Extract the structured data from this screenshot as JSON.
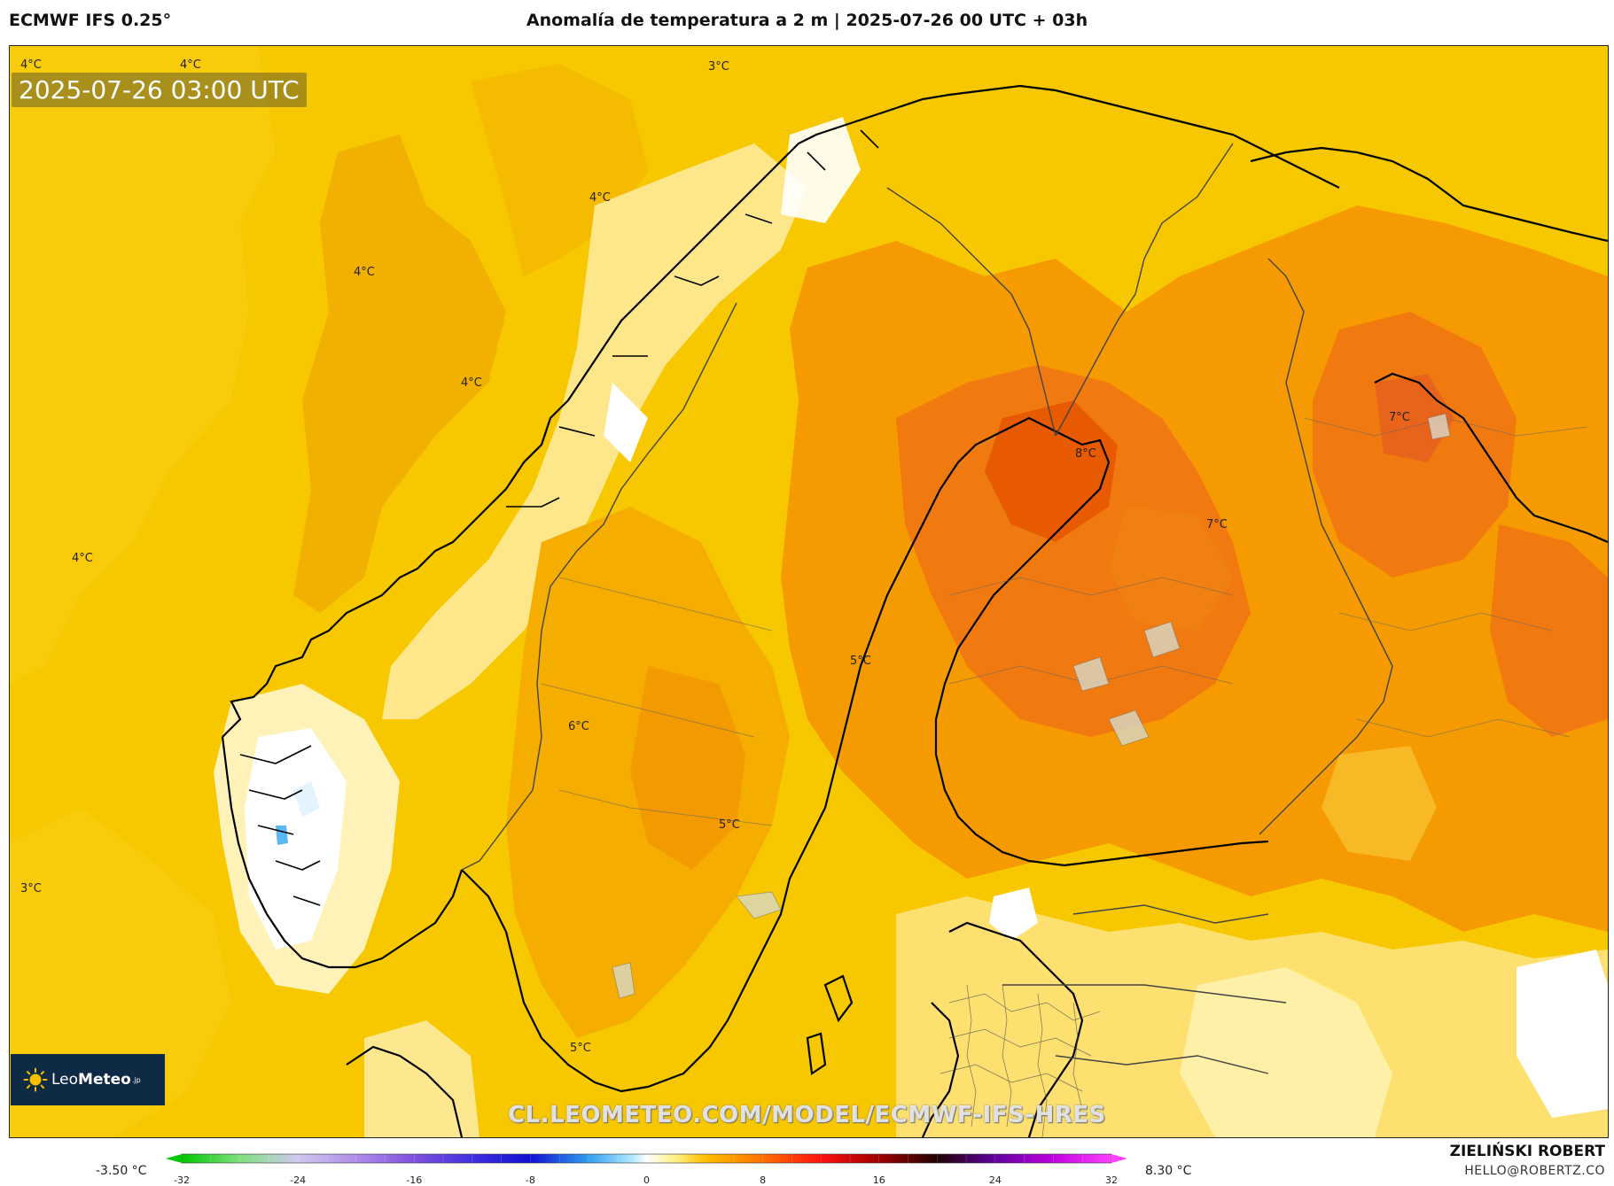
{
  "header": {
    "model": "ECMWF IFS 0.25°",
    "title": "Anomalía de temperatura a 2 m | 2025-07-26 00 UTC + 03h"
  },
  "map": {
    "timestamp": "2025-07-26 03:00 UTC",
    "contour_labels": [
      "4°C",
      "4°C",
      "3°C",
      "4°C",
      "4°C",
      "4°C",
      "4°C",
      "3°C",
      "8°C",
      "7°C",
      "7°C",
      "5°C",
      "6°C",
      "5°C",
      "5°C"
    ],
    "colors": {
      "background": "#f7c700",
      "land_warm": "#f5a800",
      "hot": "#f07a10",
      "hottest": "#e85000",
      "cool": "#fff4c0",
      "neutral": "#ffffff",
      "coastline": "#000000"
    }
  },
  "logo": {
    "brand_light": "Leo",
    "brand_bold": "Meteo",
    "suffix": ".jp"
  },
  "watermark_url": "CL.LEOMETEO.COM/MODEL/ECMWF-IFS-HRES",
  "colorbar": {
    "min_label": "-3.50 °C",
    "max_label": "8.30 °C",
    "ticks": [
      "-32",
      "-24",
      "-16",
      "-8",
      "0",
      "8",
      "16",
      "24",
      "32"
    ],
    "stops": [
      {
        "v": -32,
        "c": "#00c800"
      },
      {
        "v": -28,
        "c": "#7fe07f"
      },
      {
        "v": -24,
        "c": "#d0c8f0"
      },
      {
        "v": -20,
        "c": "#b08ce8"
      },
      {
        "v": -16,
        "c": "#8050e0"
      },
      {
        "v": -12,
        "c": "#4030e0"
      },
      {
        "v": -8,
        "c": "#1010d0"
      },
      {
        "v": -4,
        "c": "#30a0f0"
      },
      {
        "v": -1,
        "c": "#b0e8ff"
      },
      {
        "v": 0,
        "c": "#ffffff"
      },
      {
        "v": 2,
        "c": "#fff080"
      },
      {
        "v": 4,
        "c": "#ffc000"
      },
      {
        "v": 8,
        "c": "#ff7000"
      },
      {
        "v": 12,
        "c": "#ff1010"
      },
      {
        "v": 16,
        "c": "#a00000"
      },
      {
        "v": 20,
        "c": "#200000"
      },
      {
        "v": 24,
        "c": "#6000a0"
      },
      {
        "v": 28,
        "c": "#c000e0"
      },
      {
        "v": 32,
        "c": "#ff40ff"
      }
    ]
  },
  "credits": {
    "author": "ZIELIŃSKI ROBERT",
    "email": "HELLO@ROBERTZ.CO"
  }
}
